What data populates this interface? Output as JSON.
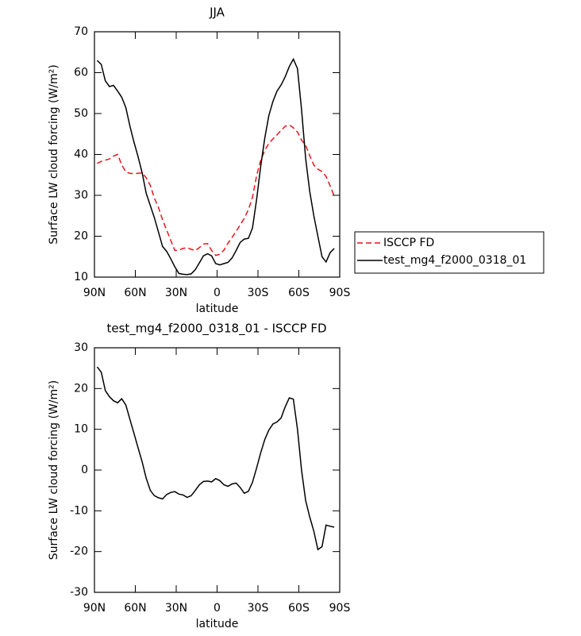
{
  "chart_data": [
    {
      "type": "line",
      "title": "JJA",
      "xlabel": "latitude",
      "ylabel": "Surface LW cloud forcing (W/m²)",
      "x": [
        88,
        85,
        82,
        79,
        76,
        73,
        70,
        67,
        64,
        61,
        58,
        55,
        52,
        49,
        46,
        43,
        40,
        37,
        34,
        31,
        28,
        25,
        22,
        19,
        16,
        13,
        10,
        7,
        4,
        1,
        -2,
        -5,
        -8,
        -11,
        -14,
        -17,
        -20,
        -23,
        -26,
        -29,
        -32,
        -35,
        -38,
        -41,
        -44,
        -47,
        -50,
        -53,
        -56,
        -59,
        -62,
        -65,
        -68,
        -71,
        -74,
        -77,
        -80,
        -83,
        -86
      ],
      "series": [
        {
          "name": "ISCCP FD",
          "color": "#e8141c",
          "dash": true,
          "values": [
            37.8,
            38.3,
            38.6,
            38.9,
            39.6,
            40,
            37.5,
            35.7,
            35.4,
            35.3,
            35.4,
            35.5,
            34.3,
            32.4,
            29.3,
            27,
            24,
            21.5,
            19,
            16.5,
            16.6,
            17,
            17.2,
            16.8,
            16.5,
            17.2,
            18.1,
            18.2,
            16.5,
            15.3,
            15.6,
            16.6,
            18.3,
            19.7,
            21.2,
            22.8,
            24.4,
            26.5,
            29.5,
            34.8,
            38.5,
            41,
            42.7,
            43.8,
            44.8,
            45.9,
            46.9,
            47.2,
            46.5,
            45.5,
            43.5,
            42.2,
            39.7,
            37.4,
            36.4,
            35.8,
            34.6,
            32.3,
            29.8
          ]
        },
        {
          "name": "test_mg4_f2000_0318_01",
          "color": "#000000",
          "dash": false,
          "values": [
            63,
            62,
            58,
            56.6,
            56.9,
            55.5,
            54,
            51.5,
            47,
            43,
            39.5,
            35.5,
            30.5,
            27.5,
            24.5,
            21,
            17.5,
            16.3,
            14.5,
            12.5,
            10.9,
            10.7,
            10.6,
            10.8,
            11.8,
            13.5,
            15.2,
            15.7,
            15.2,
            13.3,
            13,
            13.3,
            13.6,
            14.7,
            16.5,
            18.5,
            19.3,
            19.5,
            22,
            29,
            37,
            44,
            49.5,
            53,
            55.5,
            57,
            59,
            61.5,
            63.3,
            61,
            51,
            39,
            31,
            25,
            20,
            15,
            13.7,
            16,
            17
          ]
        }
      ],
      "xlim": [
        90,
        -90
      ],
      "xticks": [
        {
          "value": 90,
          "label": "90N"
        },
        {
          "value": 60,
          "label": "60N"
        },
        {
          "value": 30,
          "label": "30N"
        },
        0,
        {
          "value": -30,
          "label": "30S"
        },
        {
          "value": -60,
          "label": "60S"
        },
        {
          "value": -90,
          "label": "90S"
        }
      ],
      "ylim": [
        10,
        70
      ],
      "yticks": [
        10,
        20,
        30,
        40,
        50,
        60,
        70
      ],
      "legend": "outside-right"
    },
    {
      "type": "line",
      "title": "test_mg4_f2000_0318_01 - ISCCP FD",
      "xlabel": "latitude",
      "ylabel": "Surface LW cloud forcing (W/m²)",
      "x": [
        88,
        85,
        82,
        79,
        76,
        73,
        70,
        67,
        64,
        61,
        58,
        55,
        52,
        49,
        46,
        43,
        40,
        37,
        34,
        31,
        28,
        25,
        22,
        19,
        16,
        13,
        10,
        7,
        4,
        1,
        -2,
        -5,
        -8,
        -11,
        -14,
        -17,
        -20,
        -23,
        -26,
        -29,
        -32,
        -35,
        -38,
        -41,
        -44,
        -47,
        -50,
        -53,
        -56,
        -59,
        -62,
        -65,
        -68,
        -71,
        -74,
        -77,
        -80,
        -83,
        -86
      ],
      "series": [
        {
          "color": "#000000",
          "dash": false,
          "values": [
            25.3,
            24,
            19.5,
            18,
            17,
            16.5,
            17.5,
            16,
            12.5,
            9,
            5.5,
            2,
            -2,
            -5,
            -6.3,
            -6.8,
            -7.1,
            -6,
            -5.5,
            -5.3,
            -5.9,
            -6.1,
            -6.7,
            -6.3,
            -5,
            -3.6,
            -2.8,
            -2.7,
            -2.9,
            -2.1,
            -2.6,
            -3.6,
            -4,
            -3.4,
            -3.2,
            -4.3,
            -5.7,
            -5.2,
            -3,
            0.5,
            4.2,
            7.5,
            9.8,
            11.3,
            11.8,
            12.8,
            15.5,
            17.7,
            17.4,
            10,
            0,
            -7.5,
            -11.5,
            -15,
            -19.5,
            -18.8,
            -13.5,
            -13.8,
            -14
          ]
        }
      ],
      "xlim": [
        90,
        -90
      ],
      "xticks": [
        {
          "value": 90,
          "label": "90N"
        },
        {
          "value": 60,
          "label": "60N"
        },
        {
          "value": 30,
          "label": "30N"
        },
        0,
        {
          "value": -30,
          "label": "30S"
        },
        {
          "value": -60,
          "label": "60S"
        },
        {
          "value": -90,
          "label": "90S"
        }
      ],
      "ylim": [
        -30,
        30
      ],
      "yticks": [
        -30,
        -20,
        -10,
        0,
        10,
        20,
        30
      ]
    }
  ]
}
